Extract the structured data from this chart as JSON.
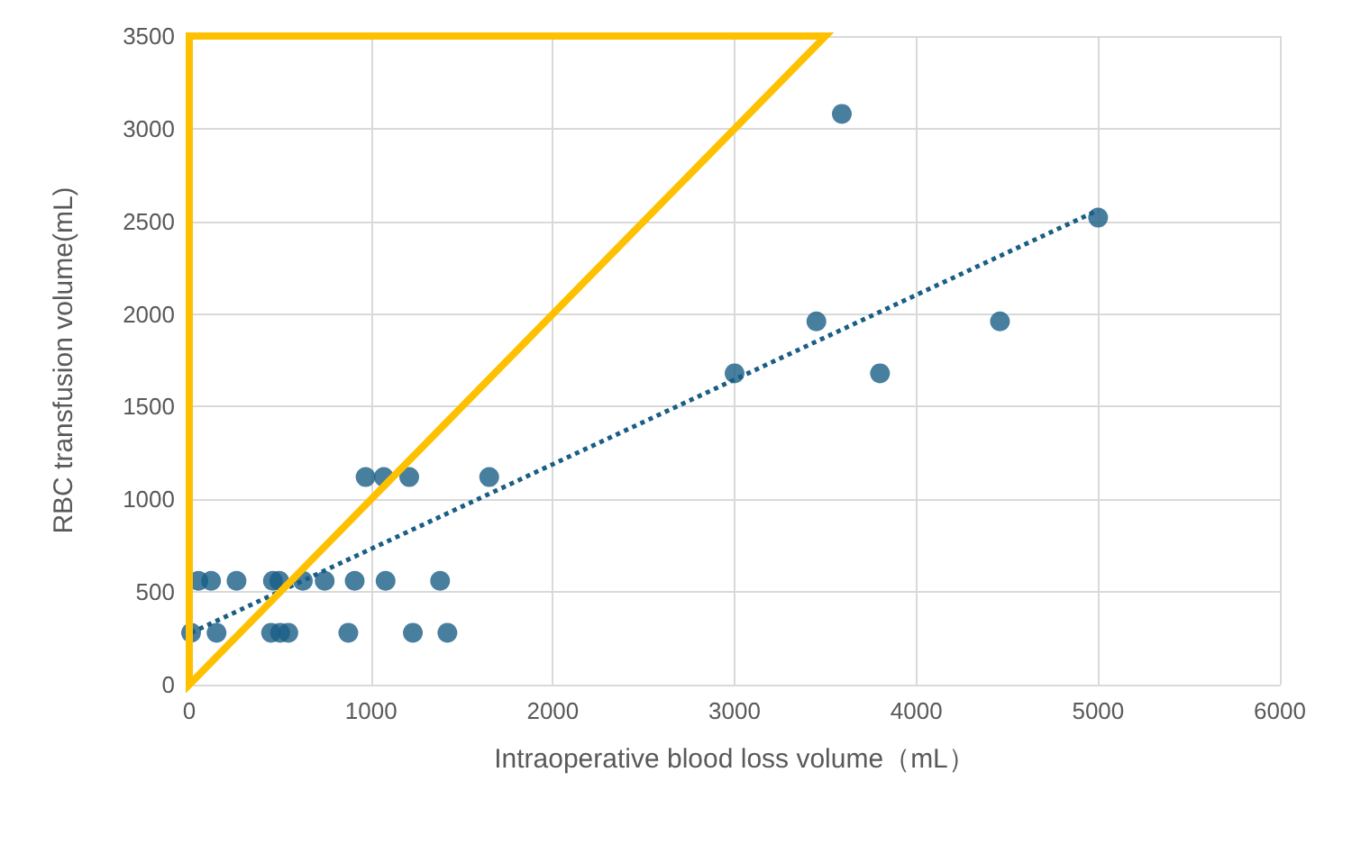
{
  "chart_data": {
    "type": "scatter",
    "xlabel": "Intraoperative blood loss volume（mL）",
    "ylabel": "RBC transfusion volume(mL)",
    "xlim": [
      0,
      6000
    ],
    "xticks": [
      0,
      1000,
      2000,
      3000,
      4000,
      5000,
      6000
    ],
    "ylim": [
      0,
      3500
    ],
    "yticks": [
      0,
      500,
      1000,
      1500,
      2000,
      2500,
      3000,
      3500
    ],
    "grid": true,
    "marker": "circle",
    "series": [
      {
        "color": "#1a5e86",
        "x": [
          10,
          150,
          450,
          500,
          545,
          875,
          1230,
          1420,
          50,
          120,
          260,
          460,
          495,
          625,
          745,
          910,
          1080,
          1380,
          970,
          1070,
          1210,
          1650,
          3000,
          3450,
          3590,
          3800,
          4460,
          5000
        ],
        "values": [
          280,
          280,
          280,
          280,
          280,
          280,
          280,
          280,
          560,
          560,
          560,
          560,
          560,
          560,
          560,
          560,
          560,
          560,
          1120,
          1120,
          1120,
          1120,
          1680,
          1960,
          3080,
          1680,
          1960,
          2520
        ]
      },
      {
        "type": "line",
        "color": "#1a5e86",
        "line_style": "dotted",
        "marker": "none",
        "x": [
          10,
          5000
        ],
        "values": [
          280,
          2560
        ]
      }
    ]
  }
}
